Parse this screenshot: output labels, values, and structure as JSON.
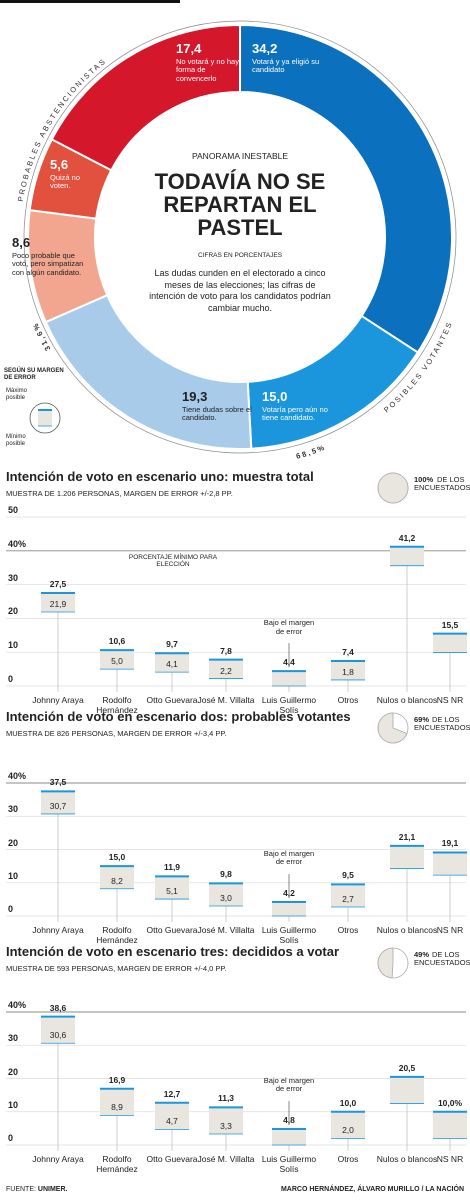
{
  "chart_data": [
    {
      "type": "donut",
      "kicker": "PANORAMA INESTABLE",
      "title": "TODAVÍA NO SE REPARTAN EL PASTEL",
      "note": "CIFRAS EN PORCENTAJES",
      "description": "Las dudas cunden en el electorado a cinco meses de las elecciones; las cifras de intención de voto para los candidatos podrían cambiar mucho.",
      "categories": [
        "Votará y ya eligió su candidato",
        "Votaría pero aún no tiene candidato.",
        "Tiene dudas sobre el candidato.",
        "Poco probable que votó, pero simpatizan con algún candidato.",
        "Quizá no voten.",
        "No votará y no hay forma de convencerlo"
      ],
      "values": [
        34.2,
        15.0,
        19.3,
        8.6,
        5.6,
        17.4
      ],
      "value_labels": [
        "34,2",
        "15,0",
        "19,3",
        "8,6",
        "5,6",
        "17,4"
      ],
      "colors": [
        "#0b70bd",
        "#1b96dc",
        "#a9cbea",
        "#f2a68f",
        "#e2503e",
        "#d5172c"
      ],
      "groups": [
        {
          "name": "PROBABLES ABSTENCIONISTAS",
          "value": 31.6,
          "value_label": "31,6%"
        },
        {
          "name": "POSIBLES VOTANTES",
          "value": 68.5,
          "value_label": "68,5%"
        }
      ],
      "legend": {
        "title": "SEGÚN SU MARGEN DE ERROR",
        "max": "Máximo posible",
        "min": "Mínimo posible"
      }
    },
    {
      "type": "range",
      "title": "Intención de voto en escenario uno: muestra total",
      "subtitle": "MUESTRA DE 1.206 PERSONAS, MARGEN DE ERROR +/-2,8 PP.",
      "share": {
        "value": 100,
        "label": "100%"
      },
      "share_text": "DE LOS ENCUESTADOS",
      "categories": [
        "Johnny Araya",
        "Rodolfo Hernández",
        "Otto Guevara",
        "José M. Villalta",
        "Luis Guillermo Solís",
        "Otros",
        "Nulos o blancos",
        "NS NR"
      ],
      "high": {
        "values": [
          27.5,
          10.6,
          9.7,
          7.8,
          4.4,
          7.4,
          41.2,
          15.5
        ],
        "value_labels": [
          "27,5",
          "10,6",
          "9,7",
          "7,8",
          "4,4",
          "7,4",
          "41,2",
          "15,5"
        ]
      },
      "low": {
        "values": [
          21.9,
          5.0,
          4.1,
          2.2,
          0,
          1.8,
          35.6,
          9.9
        ],
        "value_labels": [
          "21,9",
          "5,0",
          "4,1",
          "2,2",
          null,
          "1,8",
          null,
          null
        ]
      },
      "ylim": [
        0,
        50
      ],
      "yticks": [
        0,
        10,
        20,
        30,
        {
          "value": 40,
          "label": "40%"
        },
        50
      ],
      "note_minimum": "PORCENTAJE MÍNIMO PARA ELECCIÓN",
      "note_below": "Bajo el margen de error"
    },
    {
      "type": "range",
      "title": "Intención de voto en escenario dos: probables votantes",
      "subtitle": "MUESTRA DE 826 PERSONAS, MARGEN DE ERROR +/-3,4 PP.",
      "share": {
        "value": 69,
        "label": "69%"
      },
      "share_text": "DE LOS ENCUESTADOS",
      "categories": [
        "Johnny Araya",
        "Rodolfo Hernández",
        "Otto Guevara",
        "José M. Villalta",
        "Luis Guillermo Solís",
        "Otros",
        "Nulos o blancos",
        "NS NR"
      ],
      "high": {
        "values": [
          37.5,
          15.0,
          11.9,
          9.8,
          4.2,
          9.5,
          21.1,
          19.1
        ],
        "value_labels": [
          "37,5",
          "15,0",
          "11,9",
          "9,8",
          "4,2",
          "9,5",
          "21,1",
          "19,1"
        ]
      },
      "low": {
        "values": [
          30.7,
          8.2,
          5.1,
          3.0,
          0,
          2.7,
          14.3,
          12.3
        ],
        "value_labels": [
          "30,7",
          "8,2",
          "5,1",
          "3,0",
          null,
          "2,7",
          null,
          null
        ]
      },
      "ylim": [
        0,
        40
      ],
      "yticks": [
        0,
        10,
        20,
        30,
        {
          "value": 40,
          "label": "40%"
        }
      ],
      "note_below": "Bajo el margen de error"
    },
    {
      "type": "range",
      "title": "Intención de voto en escenario tres: decididos a votar",
      "subtitle": "MUESTRA DE 593 PERSONAS, MARGEN DE ERROR +/-4,0 PP.",
      "share": {
        "value": 49,
        "label": "49%"
      },
      "share_text": "DE LOS ENCUESTADOS",
      "categories": [
        "Johnny Araya",
        "Rodolfo Hernández",
        "Otto Guevara",
        "José M. Villalta",
        "Luis Guillermo Solís",
        "Otros",
        "Nulos o blancos",
        "NS NR"
      ],
      "high": {
        "values": [
          38.6,
          16.9,
          12.7,
          11.3,
          4.8,
          10.0,
          20.5,
          10.0
        ],
        "value_labels": [
          "38,6",
          "16,9",
          "12,7",
          "11,3",
          "4,8",
          "10,0",
          "20,5",
          "10,0%"
        ]
      },
      "low": {
        "values": [
          30.6,
          8.9,
          4.7,
          3.3,
          0,
          2.0,
          12.5,
          2.0
        ],
        "value_labels": [
          "30,6",
          "8,9",
          "4,7",
          "3,3",
          null,
          "2,0",
          null,
          null
        ]
      },
      "ylim": [
        0,
        40
      ],
      "yticks": [
        0,
        10,
        20,
        30,
        {
          "value": 40,
          "label": "40%"
        }
      ],
      "note_below": "Bajo el margen de error"
    }
  ],
  "footer": {
    "source_label": "FUENTE:",
    "source": "UNIMER.",
    "credits": "MARCO HERNÁNDEZ, ÁLVARO MURILLO / LA NACIÓN"
  }
}
